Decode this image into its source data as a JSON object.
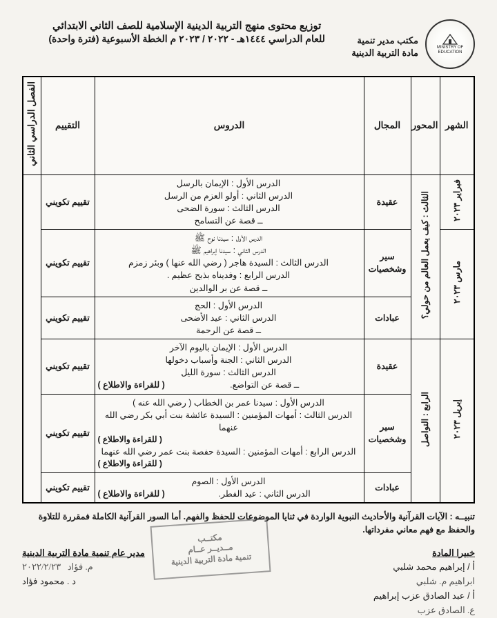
{
  "header": {
    "office_line1": "مكتب مدير تنمية",
    "office_line2": "مادة التربية الدينية",
    "title1": "توزيع محتوى منهج التربية الدينية الإسلامية للصف الثاني الابتدائي",
    "title2": "للعام الدراسي ١٤٤٤هـ - ٢٠٢٢ / ٢٠٢٣ م الخطة الأسبوعية (فترة واحدة)",
    "logo_inner": "MINISTRY OF EDUCATION"
  },
  "columns": {
    "month": "الشهر",
    "axis": "المحور",
    "field": "المجال",
    "lessons": "الدروس",
    "eval": "التقييم",
    "semester": "الفصل الدراسي الثاني"
  },
  "axes": {
    "a3": "الثالث : كيف يعمل العالم من حولي؟",
    "a4": "الرابع : التواصل"
  },
  "months": {
    "feb": "فبراير ٢٠٢٣",
    "mar": "مارس ٢٠٢٣",
    "apr": "إبريل ٢٠٢٣"
  },
  "eval": "تقييم تكويني",
  "read_note": "( للقراءة والاطلاع )",
  "rows": [
    {
      "field": "عقيدة",
      "lessons": [
        "الدرس الأول : الإيمان بالرسل",
        "الدرس الثاني : أولو العزم من الرسل",
        "الدرس الثالث : سورة الضحى",
        "ــ قصة عن التسامح"
      ]
    },
    {
      "field": "سير وشخصيات",
      "lessons": [
        "الدرس الأول : سيدنا نوح ﷺ",
        "الدرس الثاني : سيدنا إبراهيم ﷺ",
        "الدرس الثالث : السيدة هاجر ( رضي الله عنها ) وبئر زمزم",
        "الدرس الرابع : وفديناه بذبح عظيم .",
        "ــ قصة عن بر الوالدين"
      ]
    },
    {
      "field": "عبادات",
      "lessons": [
        "الدرس الأول : الحج",
        "الدرس الثاني : عيد الأضحى",
        "ــ قصة عن الرحمة"
      ]
    },
    {
      "field": "عقيدة",
      "lessons": [
        "الدرس الأول : الإيمان باليوم الآخر",
        "الدرس الثاني : الجنة وأسباب دخولها",
        "الدرس الثالث : سورة الليل",
        "ــ قصة عن التواضع."
      ],
      "with_read_last": true
    },
    {
      "field": "سير وشخصيات",
      "lessons": [
        "الدرس الأول : سيدنا عمر بن الخطاب ( رضي الله عنه )",
        "الدرس الثالث : أمهات المؤمنين : السيدة عائشة بنت أبي بكر رضي الله عنهما",
        "الدرس الرابع : أمهات المؤمنين : السيدة حفصة بنت عمر رضي الله عنهما"
      ],
      "read_after": [
        1,
        2
      ]
    },
    {
      "field": "عبادات",
      "lessons": [
        "الدرس الأول : الصوم",
        "الدرس الثاني : عيد الفطر."
      ],
      "with_read_last": true
    }
  ],
  "footer": {
    "note": "تنبيــه : الآيات القرآنية والأحاديث النبوية الواردة في ثنايا الموضوعات للحفظ والفهم. أما السور القرآنية الكاملة فمقررة للتلاوة والحفظ مع فهم معاني مفرداتها.",
    "experts_h": "خبيرا المادة",
    "expert1": "أ /  إبراهيم محمد شلبي",
    "expert2": "أ /  عبد الصادق عزب إبراهيم",
    "director_h": "مدير عام تنمية مادة التربية الدينية",
    "director": "د . محمود فؤاد",
    "stamp_l1": "مكتــب",
    "stamp_l2": "مــديــر عــام",
    "stamp_l3": "تنمية مادة التربية الدينية"
  }
}
